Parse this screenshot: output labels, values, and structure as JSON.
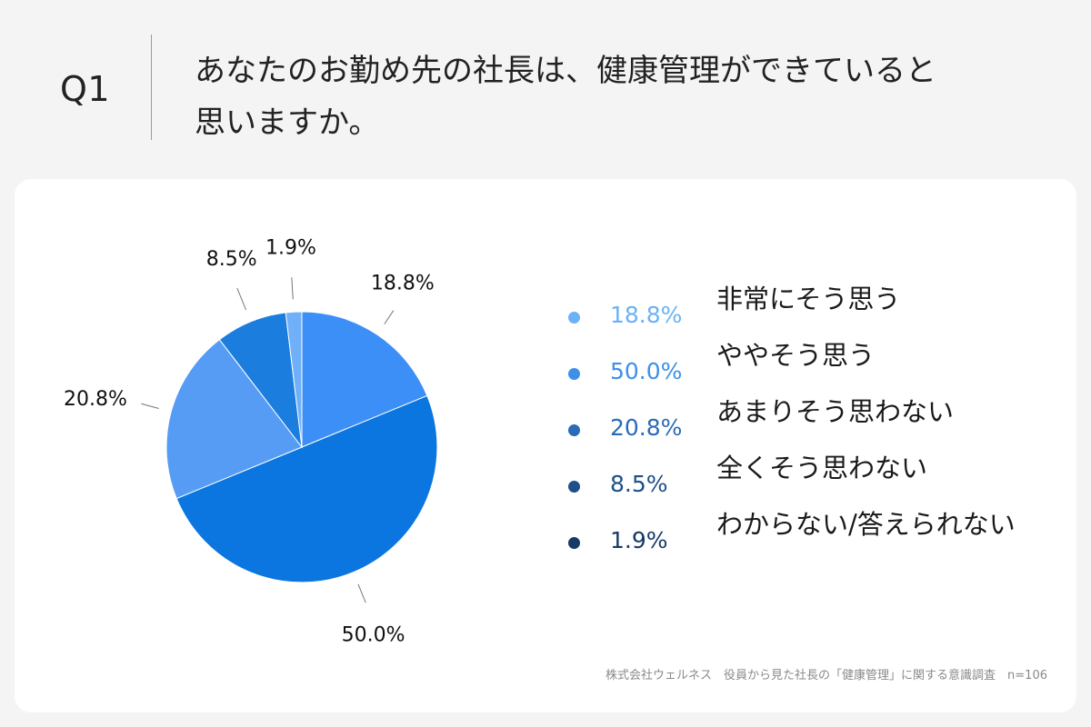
{
  "header": {
    "q_label": "Q1",
    "question": "あなたのお勤め先の社長は、健康管理ができていると\n思いますか。"
  },
  "chart_data": {
    "type": "pie",
    "categories": [
      "非常にそう思う",
      "ややそう思う",
      "あまりそう思わない",
      "全くそう思わない",
      "わからない/答えられない"
    ],
    "values": [
      18.8,
      50.0,
      20.8,
      8.5,
      1.9
    ],
    "labels": [
      "18.8%",
      "50.0%",
      "20.8%",
      "8.5%",
      "1.9%"
    ],
    "colors": [
      "#3c8ff7",
      "#0b76e0",
      "#569cf5",
      "#1b7ede",
      "#6fb0f8"
    ],
    "legend_dot_colors": [
      "#6bb2f3",
      "#3d90e9",
      "#2a6bb7",
      "#1f4f8a",
      "#183a67"
    ],
    "legend_placement": "right"
  },
  "footer": {
    "source": "株式会社ウェルネス　役員から見た社長の「健康管理」に関する意識調査　n=106"
  }
}
